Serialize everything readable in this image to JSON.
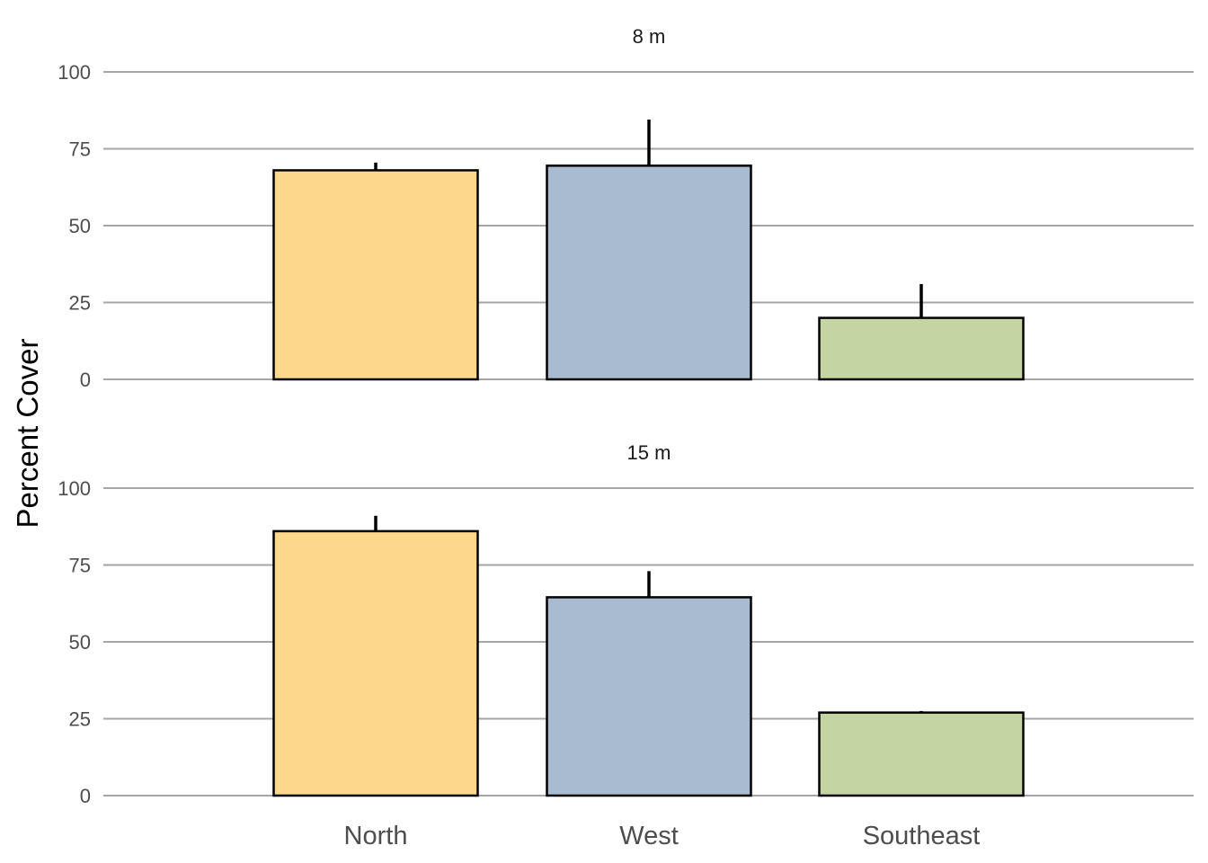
{
  "chart_data": {
    "type": "bar",
    "ylabel": "Percent Cover",
    "xlabel": "",
    "categories": [
      "North",
      "West",
      "Southeast"
    ],
    "colors": [
      "#fdd78b",
      "#a8bbd0",
      "#c4d4a3"
    ],
    "ylim": [
      0,
      100
    ],
    "yticks": [
      0,
      25,
      50,
      75,
      100
    ],
    "grid": "horizontal",
    "legend": "none",
    "panels": [
      {
        "title": "8 m",
        "values": [
          68,
          69.5,
          20
        ],
        "error_upper": [
          70.5,
          84.5,
          31
        ]
      },
      {
        "title": "15 m",
        "values": [
          86,
          64.5,
          27
        ],
        "error_upper": [
          91,
          73,
          27.5
        ]
      }
    ]
  }
}
